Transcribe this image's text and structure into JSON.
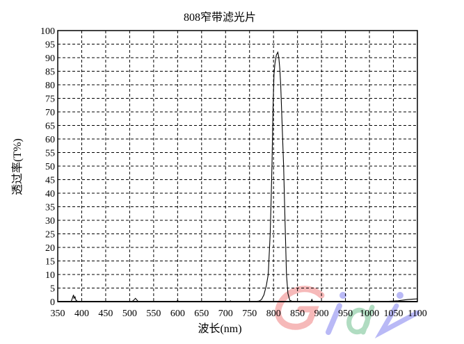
{
  "chart_data": {
    "type": "line",
    "title": "808窄带滤光片",
    "xlabel": "波长(nm)",
    "ylabel": "透过率(T%)",
    "xlim": [
      350,
      1100
    ],
    "ylim": [
      0,
      100
    ],
    "xticks": [
      350,
      400,
      450,
      500,
      550,
      600,
      650,
      700,
      750,
      800,
      850,
      900,
      950,
      1000,
      1050,
      1100
    ],
    "yticks": [
      0,
      5,
      10,
      15,
      20,
      25,
      30,
      35,
      40,
      45,
      50,
      55,
      60,
      65,
      70,
      75,
      80,
      85,
      90,
      95,
      100
    ],
    "grid": true,
    "grid_style": "dashed",
    "line_color": "#000000",
    "series": [
      {
        "x": [
          350,
          378,
          381,
          383,
          384,
          386,
          388,
          392,
          400,
          505,
          510,
          512,
          514,
          518,
          598,
          600,
          602,
          708,
          710,
          712,
          760,
          770,
          775,
          780,
          785,
          789,
          793,
          795,
          797,
          799,
          801,
          803,
          806,
          809,
          811,
          813,
          815,
          818,
          821,
          824,
          827,
          830,
          834,
          840,
          850,
          878,
          880,
          882,
          885,
          950,
          1000,
          1040,
          1060,
          1080,
          1100
        ],
        "y": [
          0,
          0,
          1.5,
          2.5,
          1.2,
          1.8,
          0.5,
          0,
          0,
          0,
          0.8,
          1.2,
          0.8,
          0,
          0,
          0.5,
          0,
          0,
          0.3,
          0,
          0,
          0.2,
          0.8,
          2.5,
          6,
          10,
          25,
          38,
          52,
          72,
          84,
          88,
          91,
          92,
          90,
          86,
          80,
          65,
          50,
          30,
          10,
          3,
          0.5,
          0,
          0,
          0,
          0.8,
          0,
          0,
          0,
          0,
          0.1,
          0.3,
          0.8,
          1.0
        ]
      }
    ]
  },
  "watermark": {
    "text": "Giai",
    "colors": [
      "#f08080",
      "#8080f0",
      "#70c090",
      "#8080f0"
    ]
  }
}
